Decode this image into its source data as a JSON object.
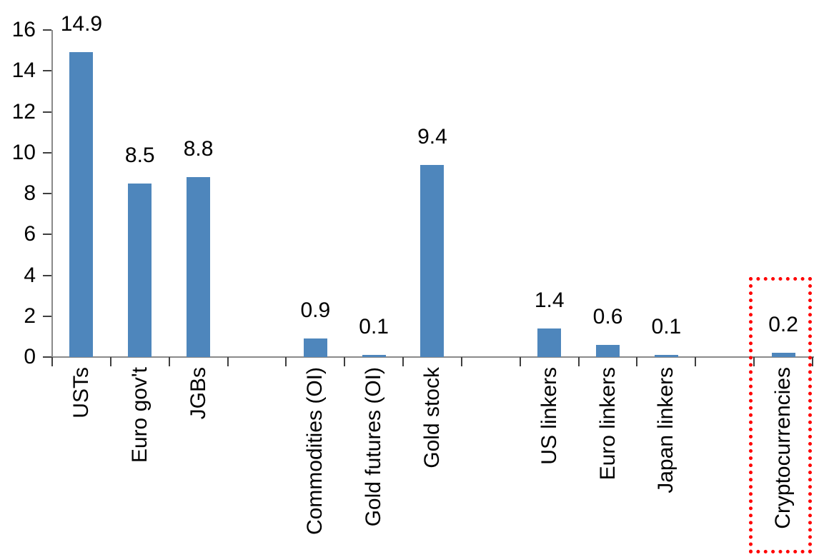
{
  "chart_data": {
    "type": "bar",
    "title": "",
    "categories": [
      "USTs",
      "Euro gov't",
      "JGBs",
      "Commodities (OI)",
      "Gold futures (OI)",
      "Gold stock",
      "US linkers",
      "Euro linkers",
      "Japan linkers",
      "Cryptocurrencies"
    ],
    "values": [
      14.9,
      8.5,
      8.8,
      0.9,
      0.1,
      9.4,
      1.4,
      0.6,
      0.1,
      0.2
    ],
    "data_labels": [
      "14.9",
      "8.5",
      "8.8",
      "0.9",
      "0.1",
      "9.4",
      "1.4",
      "0.6",
      "0.1",
      "0.2"
    ],
    "slot_positions": [
      0,
      1,
      2,
      4,
      5,
      6,
      8,
      9,
      10,
      12
    ],
    "slot_count": 13,
    "xlabel": "",
    "ylabel": "",
    "ylim": [
      0,
      16
    ],
    "ytick_step": 2,
    "ytick_labels": [
      "0",
      "2",
      "4",
      "6",
      "8",
      "10",
      "12",
      "14",
      "16"
    ],
    "grid": false,
    "legend": null,
    "bar_color": "#4e86bc",
    "axis_color": "#8a8a8a",
    "tick_color": "#3f3f3f",
    "highlight": {
      "category": "Cryptocurrencies",
      "box_color": "#ff0000",
      "box_style": "dotted"
    }
  }
}
